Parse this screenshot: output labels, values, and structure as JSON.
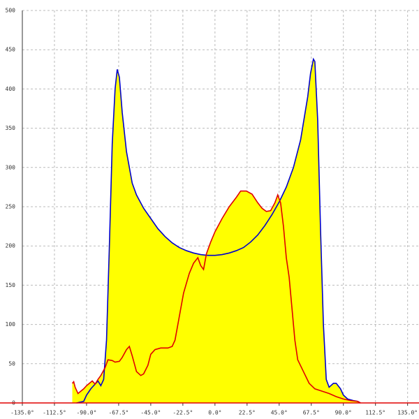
{
  "chart_data": {
    "type": "area",
    "xlim": [
      -135,
      143
    ],
    "ylim": [
      0,
      500
    ],
    "xticks": [
      {
        "value": -135,
        "label": "-135.0°"
      },
      {
        "value": -112.5,
        "label": "-112.5°"
      },
      {
        "value": -90,
        "label": "-90.0°"
      },
      {
        "value": -67.5,
        "label": "-67.5°"
      },
      {
        "value": -45,
        "label": "-45.0°"
      },
      {
        "value": -22.5,
        "label": "-22.5°"
      },
      {
        "value": 0,
        "label": "0.0°"
      },
      {
        "value": 22.5,
        "label": "22.5°"
      },
      {
        "value": 45,
        "label": "45.0°"
      },
      {
        "value": 67.5,
        "label": "67.5°"
      },
      {
        "value": 90,
        "label": "90.0°"
      },
      {
        "value": 112.5,
        "label": "112.5°"
      },
      {
        "value": 135,
        "label": "135.0°"
      }
    ],
    "yticks": [
      0,
      50,
      100,
      150,
      200,
      250,
      300,
      350,
      400,
      450,
      500
    ],
    "grid": true,
    "area_color": "#ffff00",
    "axis_color": "#e00000",
    "series": [
      {
        "color": "#0000cc",
        "x": [
          -97,
          -92,
          -90,
          -87,
          -85,
          -82,
          -80,
          -78,
          -76,
          -74,
          -72,
          -70,
          -68.5,
          -67,
          -65,
          -62,
          -58,
          -55,
          -50,
          -45,
          -40,
          -35,
          -30,
          -25,
          -20,
          -15,
          -10,
          -5,
          0,
          5,
          10,
          15,
          20,
          25,
          30,
          35,
          40,
          45,
          50,
          55,
          60,
          65,
          67,
          69,
          70,
          72,
          74,
          76,
          78,
          80,
          83,
          85,
          88,
          90,
          93,
          97,
          100,
          102
        ],
        "values": [
          0,
          2,
          10,
          18,
          22,
          28,
          22,
          30,
          80,
          200,
          330,
          400,
          425,
          415,
          370,
          320,
          280,
          265,
          248,
          235,
          222,
          212,
          204,
          198,
          194,
          191,
          189,
          188,
          188,
          189,
          191,
          194,
          198,
          205,
          214,
          226,
          240,
          256,
          275,
          300,
          335,
          390,
          420,
          438,
          435,
          360,
          220,
          100,
          30,
          20,
          25,
          25,
          18,
          10,
          5,
          3,
          2,
          0
        ]
      },
      {
        "color": "#e00000",
        "x": [
          -100,
          -99,
          -98,
          -96,
          -94,
          -92,
          -90,
          -88,
          -86,
          -84,
          -82,
          -80,
          -77,
          -75,
          -72,
          -70,
          -67,
          -65,
          -62,
          -60,
          -58,
          -55,
          -52,
          -50,
          -47,
          -45,
          -42,
          -38,
          -33,
          -30,
          -28,
          -25,
          -22,
          -18,
          -15,
          -12,
          -10,
          -8,
          -6,
          -3,
          0,
          5,
          10,
          15,
          18,
          22,
          26,
          30,
          33,
          36,
          39,
          42,
          44,
          46,
          48,
          50,
          52,
          54,
          56,
          58,
          62,
          66,
          70,
          75,
          80,
          85,
          90,
          95,
          100,
          102
        ],
        "values": [
          25,
          27,
          20,
          12,
          15,
          18,
          22,
          25,
          28,
          24,
          30,
          35,
          45,
          55,
          54,
          52,
          53,
          58,
          68,
          72,
          60,
          40,
          35,
          37,
          48,
          62,
          68,
          70,
          70,
          72,
          80,
          110,
          140,
          165,
          178,
          185,
          175,
          170,
          190,
          205,
          218,
          235,
          250,
          262,
          270,
          270,
          266,
          255,
          248,
          244,
          245,
          255,
          265,
          255,
          225,
          185,
          160,
          120,
          80,
          55,
          40,
          25,
          18,
          15,
          12,
          8,
          5,
          3,
          2,
          0
        ]
      }
    ]
  }
}
